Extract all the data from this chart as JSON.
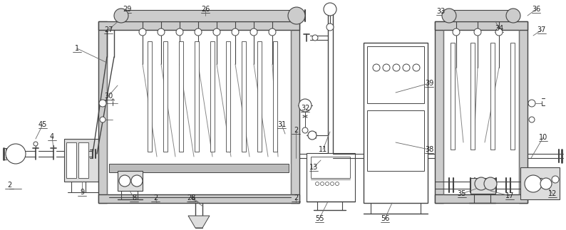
{
  "figsize": [
    7.94,
    3.23
  ],
  "dpi": 100,
  "lc": "#444444",
  "lc2": "#888888",
  "gray1": "#bbbbbb",
  "gray2": "#cccccc",
  "gray3": "#dddddd",
  "white": "#ffffff",
  "label_fs": 7,
  "label_color": "#222222"
}
